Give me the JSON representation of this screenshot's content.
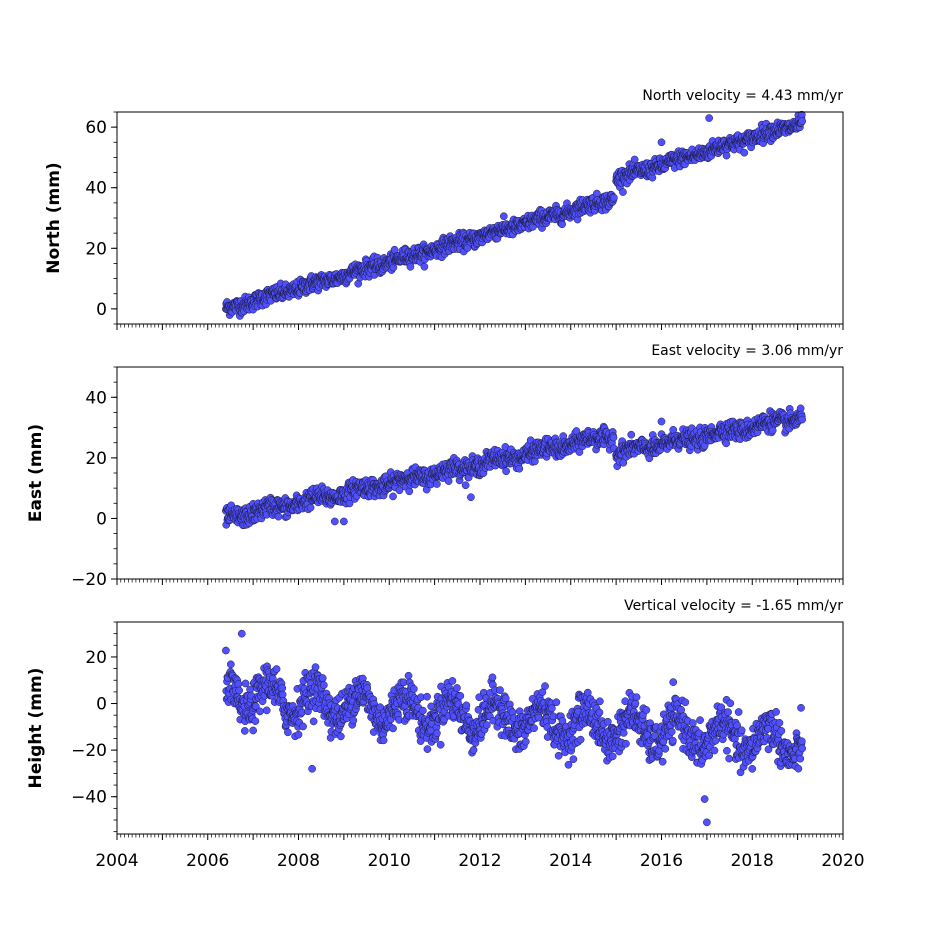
{
  "colors": {
    "marker_fill": "#5050ff",
    "marker_edge": "#1a1a3a",
    "axis": "#000000"
  },
  "chart_data": [
    {
      "type": "scatter",
      "title": "North velocity = 4.43 mm/yr",
      "xlabel": "",
      "ylabel": "North (mm)",
      "xlim": [
        2004,
        2020
      ],
      "ylim": [
        -5,
        65
      ],
      "yticks": [
        "0",
        "20",
        "40",
        "60"
      ],
      "ytick_values": [
        0,
        20,
        40,
        60
      ],
      "xtick_labels_visible": false,
      "velocity_mm_per_yr": 4.43,
      "trend_segments": [
        {
          "x": [
            2006.4,
            2014.95
          ],
          "y": [
            0,
            36.5
          ]
        },
        {
          "x": [
            2015.0,
            2019.1
          ],
          "y": [
            43.0,
            61.5
          ]
        }
      ],
      "noise_mm": 1.3,
      "seasonal_amplitude_mm": 0.4,
      "outliers": [
        {
          "x": 2016.0,
          "y": 55
        },
        {
          "x": 2017.05,
          "y": 63
        }
      ],
      "grid": false
    },
    {
      "type": "scatter",
      "title": "East velocity = 3.06 mm/yr",
      "xlabel": "",
      "ylabel": "East (mm)",
      "xlim": [
        2004,
        2020
      ],
      "ylim": [
        -20,
        50
      ],
      "yticks": [
        "−20",
        "0",
        "20",
        "40"
      ],
      "ytick_values": [
        -20,
        0,
        20,
        40
      ],
      "xtick_labels_visible": false,
      "velocity_mm_per_yr": 3.06,
      "trend_segments": [
        {
          "x": [
            2006.4,
            2014.95
          ],
          "y": [
            0,
            27.5
          ]
        },
        {
          "x": [
            2015.0,
            2019.1
          ],
          "y": [
            21.5,
            33.5
          ]
        }
      ],
      "noise_mm": 1.5,
      "seasonal_amplitude_mm": 0.8,
      "outliers": [
        {
          "x": 2008.8,
          "y": -1
        },
        {
          "x": 2009.0,
          "y": -1
        },
        {
          "x": 2011.8,
          "y": 7
        },
        {
          "x": 2016.0,
          "y": 32
        }
      ],
      "grid": false
    },
    {
      "type": "scatter",
      "title": "Vertical velocity = -1.65 mm/yr",
      "xlabel": "",
      "ylabel": "Height (mm)",
      "xlim": [
        2004,
        2020
      ],
      "ylim": [
        -56,
        35
      ],
      "yticks": [
        "−40",
        "−20",
        "0",
        "20"
      ],
      "ytick_values": [
        -40,
        -20,
        0,
        20
      ],
      "xticks": [
        "2004",
        "2006",
        "2008",
        "2010",
        "2012",
        "2014",
        "2016",
        "2018",
        "2020"
      ],
      "xtick_values": [
        2004,
        2006,
        2008,
        2010,
        2012,
        2014,
        2016,
        2018,
        2020
      ],
      "xtick_labels_visible": true,
      "velocity_mm_per_yr": -1.65,
      "trend_segments": [
        {
          "x": [
            2006.4,
            2019.1
          ],
          "y": [
            4,
            -17
          ]
        }
      ],
      "noise_mm": 4.5,
      "seasonal_amplitude_mm": 6.5,
      "outliers": [
        {
          "x": 2006.75,
          "y": 30
        },
        {
          "x": 2017.0,
          "y": -51
        },
        {
          "x": 2016.95,
          "y": -41
        },
        {
          "x": 2008.3,
          "y": -28
        }
      ],
      "grid": false
    }
  ]
}
